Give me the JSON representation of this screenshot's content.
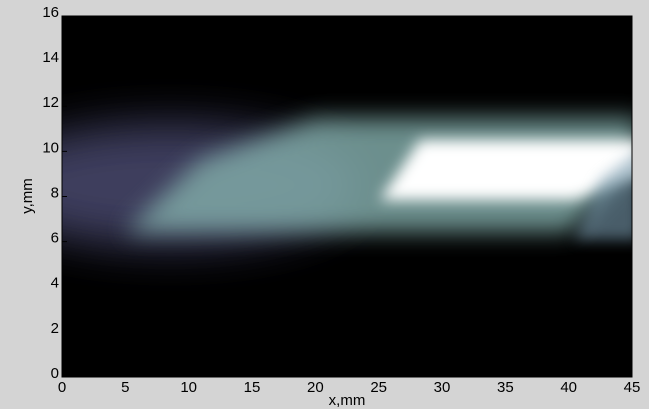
{
  "chart_data": {
    "type": "image",
    "x_label": "x,mm",
    "y_label": "y,mm",
    "xlim": [
      0,
      45
    ],
    "xticks": [
      0,
      5,
      10,
      15,
      20,
      25,
      30,
      35,
      40,
      45
    ],
    "ylim": [
      0,
      16
    ],
    "yticks": [
      0,
      2,
      4,
      6,
      8,
      10,
      12,
      14,
      16
    ]
  }
}
